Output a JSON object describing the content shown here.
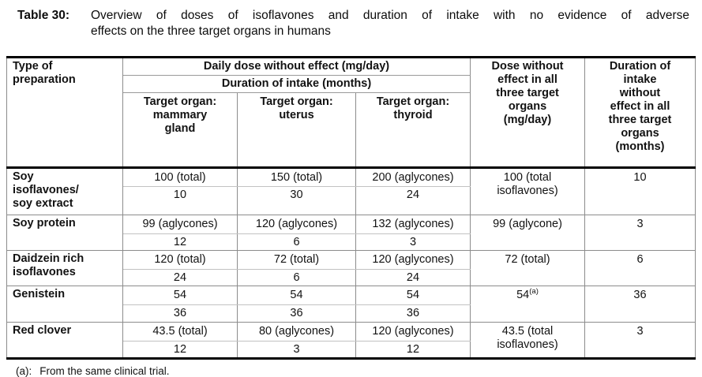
{
  "title": {
    "label": "Table 30:",
    "line1": "Overview of doses of isoflavones and duration of intake with no evidence of adverse",
    "line2": "effects on the three target organs in humans"
  },
  "table": {
    "header": {
      "type_of_preparation": "Type of\npreparation",
      "daily_dose": "Daily dose without effect (mg/day)",
      "duration_intake": "Duration of intake (months)",
      "organ_mammary": "Target organ:\nmammary\ngland",
      "organ_uterus": "Target organ:\nuterus",
      "organ_thyroid": "Target organ:\nthyroid",
      "dose_all": "Dose without\neffect in all\nthree target\norgans\n(mg/day)",
      "duration_all": "Duration of\nintake\nwithout\neffect in all\nthree target\norgans\n(months)"
    },
    "rows": [
      {
        "preparation": "Soy\nisoflavones/\nsoy extract",
        "dose_mammary": "100 (total)",
        "dose_uterus": "150 (total)",
        "dose_thyroid": "200 (aglycones)",
        "dur_mammary": "10",
        "dur_uterus": "30",
        "dur_thyroid": "24",
        "dose_all": "100 (total\nisoflavones)",
        "duration_all": "10"
      },
      {
        "preparation": "Soy protein",
        "dose_mammary": "99 (aglycones)",
        "dose_uterus": "120 (aglycones)",
        "dose_thyroid": "132 (aglycones)",
        "dur_mammary": "12",
        "dur_uterus": "6",
        "dur_thyroid": "3",
        "dose_all": "99 (aglycone)",
        "duration_all": "3"
      },
      {
        "preparation": "Daidzein rich\nisoflavones",
        "dose_mammary": "120 (total)",
        "dose_uterus": "72 (total)",
        "dose_thyroid": "120 (aglycones)",
        "dur_mammary": "24",
        "dur_uterus": "6",
        "dur_thyroid": "24",
        "dose_all": "72 (total)",
        "duration_all": "6"
      },
      {
        "preparation": "Genistein",
        "dose_mammary": "54",
        "dose_uterus": "54",
        "dose_thyroid": "54",
        "dur_mammary": "36",
        "dur_uterus": "36",
        "dur_thyroid": "36",
        "dose_all": "54",
        "dose_all_sup": "(a)",
        "duration_all": "36"
      },
      {
        "preparation": "Red clover",
        "dose_mammary": "43.5 (total)",
        "dose_uterus": "80 (aglycones)",
        "dose_thyroid": "120 (aglycones)",
        "dur_mammary": "12",
        "dur_uterus": "3",
        "dur_thyroid": "12",
        "dose_all": "43.5 (total\nisoflavones)",
        "duration_all": "3"
      }
    ]
  },
  "footnote": {
    "label": "(a):",
    "text": "From the same clinical trial."
  },
  "colors": {
    "heavy_border": "#000000",
    "grid_border": "#8c8c8c",
    "light_border": "#c2c2c2",
    "text": "#121212",
    "background": "#ffffff"
  }
}
